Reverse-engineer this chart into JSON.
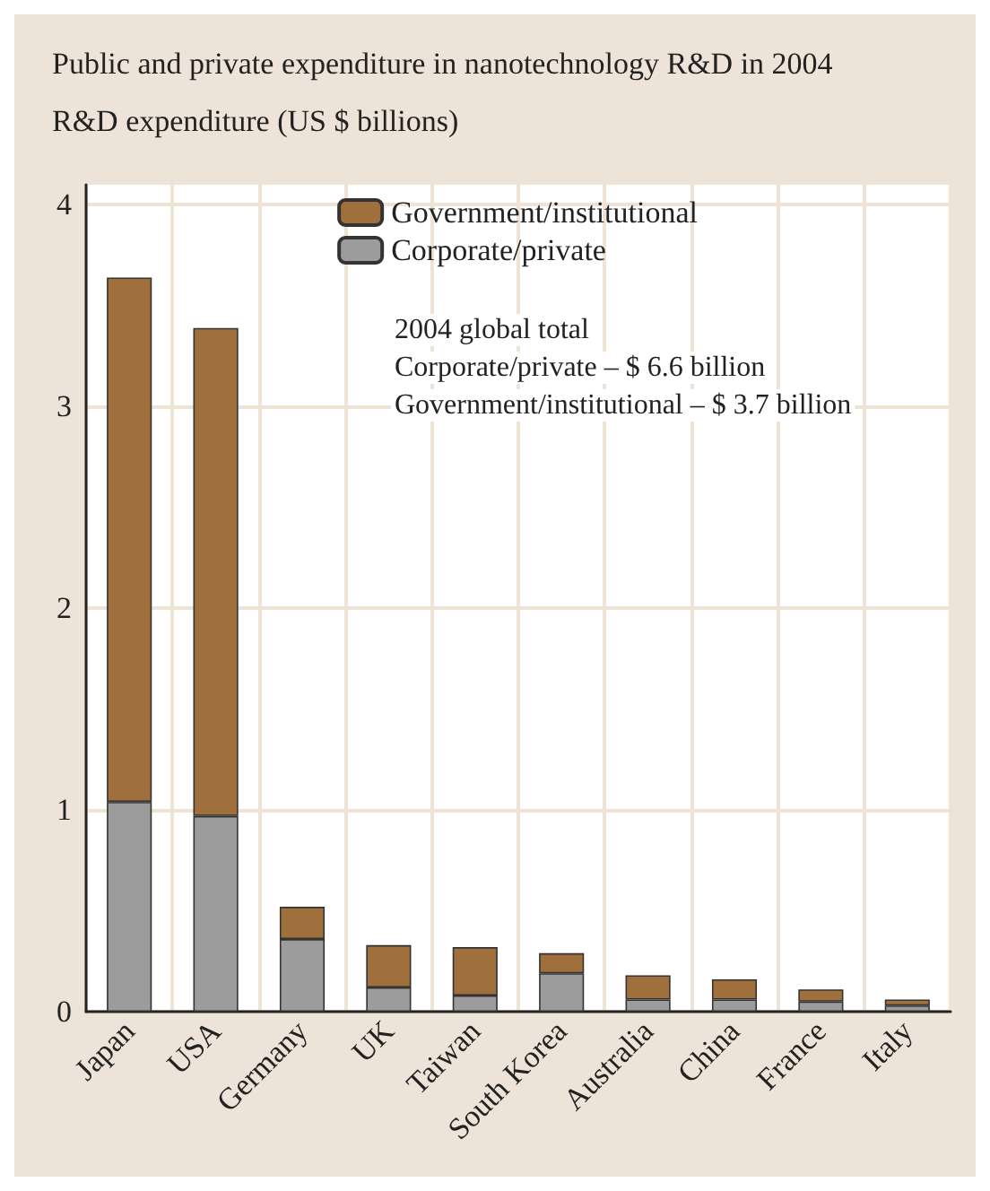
{
  "chart_data": {
    "type": "bar",
    "title": "Public and private expenditure in nanotechnology R&D in 2004",
    "ylabel": "R&D expenditure (US $ billions)",
    "categories": [
      "Japan",
      "USA",
      "Germany",
      "UK",
      "Taiwan",
      "South Korea",
      "Australia",
      "China",
      "France",
      "Italy"
    ],
    "stacked": true,
    "series": [
      {
        "name": "Corporate/private",
        "color": "#9c9c9c",
        "values": [
          1.04,
          0.97,
          0.36,
          0.12,
          0.08,
          0.19,
          0.06,
          0.06,
          0.05,
          0.03
        ]
      },
      {
        "name": "Government/institutional",
        "color": "#a0703c",
        "values": [
          2.6,
          2.42,
          0.16,
          0.21,
          0.24,
          0.1,
          0.12,
          0.1,
          0.06,
          0.03
        ]
      }
    ],
    "ylim": [
      0,
      4.1
    ],
    "yticks": [
      0,
      1,
      2,
      3,
      4
    ],
    "grid": true,
    "legend": "top right",
    "annotations": [
      "2004 global total",
      "Corporate/private – $ 6.6 billion",
      "Government/institutional – $ 3.7 billion"
    ]
  }
}
